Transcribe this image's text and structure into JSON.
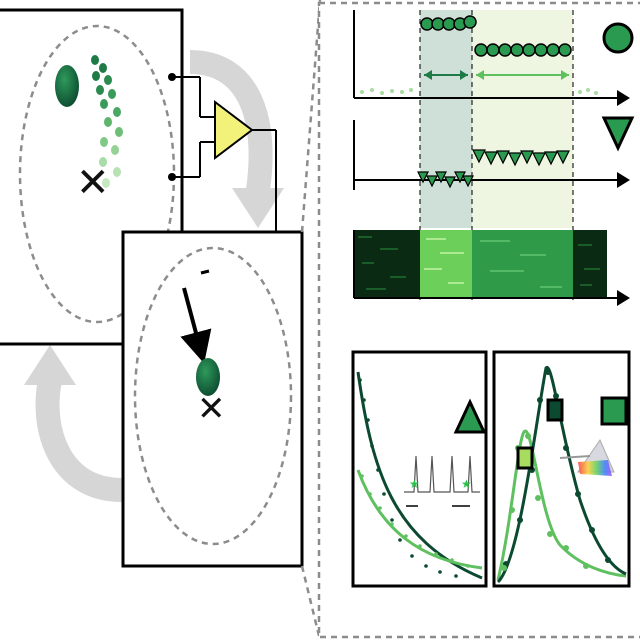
{
  "diagram": {
    "colors": {
      "dark_green": "#0b4a30",
      "mid_green": "#1e7a46",
      "light_green": "#5fc05f",
      "pale_green": "#a8dca0",
      "amplifier_fill": "#f2f27a",
      "loop_arrow": "#d6d6d6",
      "dashed_border": "#8c8c8c",
      "band_dark": "#cfe0d8",
      "band_light": "#eef6e2"
    },
    "marker_legend": [
      "circle-marker",
      "triangle-down-marker",
      "triangle-up-marker",
      "square-marker"
    ],
    "icons": [
      "cross-icon",
      "amplifier-icon",
      "star-icon",
      "prism-icon",
      "double-arrow-icon"
    ],
    "labels": {
      "cross_glyph": "✕",
      "star_glyph": "★"
    }
  }
}
